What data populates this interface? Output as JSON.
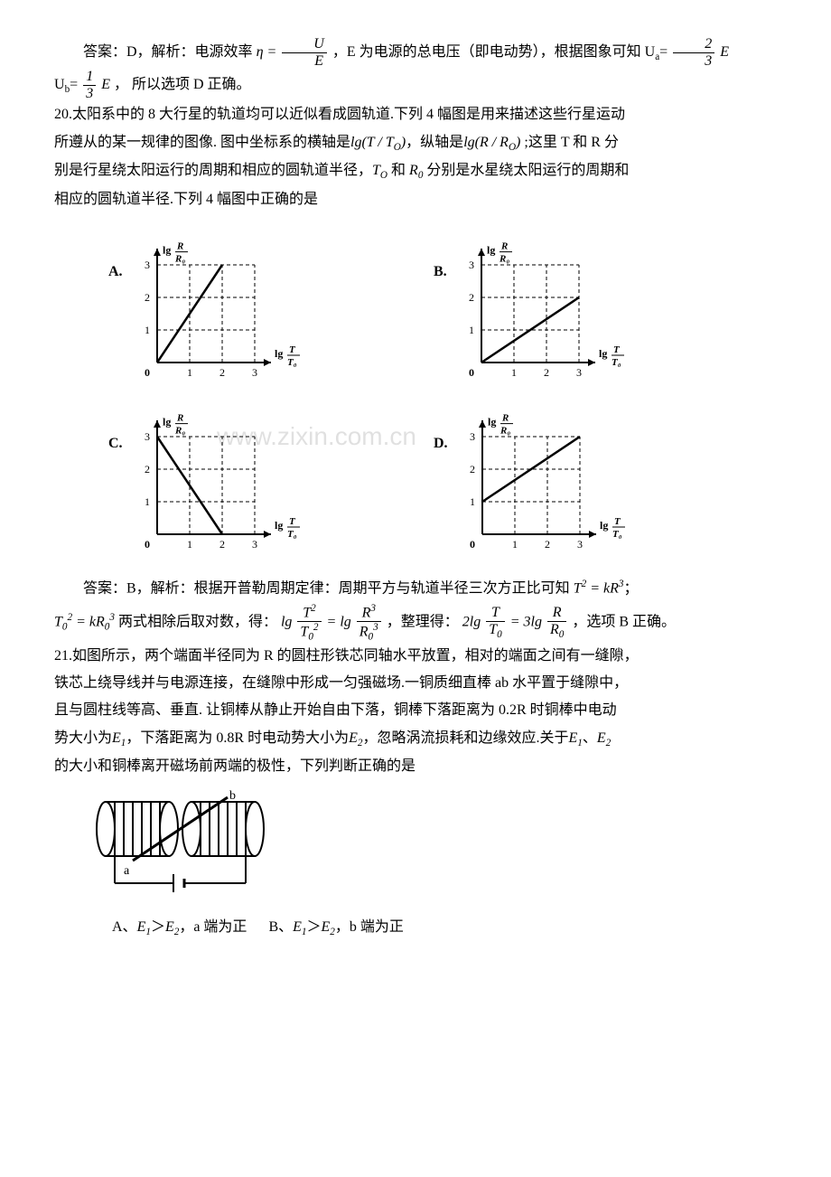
{
  "q19": {
    "answer_prefix": "答案：D，解析：电源效率",
    "eta_eq": "η =",
    "frac_U": "U",
    "frac_E": "E",
    "after_frac": "，E 为电源的总电压（即电动势），根据图象可知 U",
    "sub_a": "a",
    "equals": "=",
    "frac2_num": "2",
    "frac2_den": "3",
    "E_sym": "E",
    "line2_prefix": "U",
    "sub_b": "b",
    "line2_eq": "=",
    "frac3_num": "1",
    "frac3_den": "3",
    "line2_after": " ， 所以选项 D 正确。"
  },
  "q20": {
    "stem1": "20.太阳系中的 8 大行星的轨道均可以近似看成圆轨道.下列 4 幅图是用来描述这些行星运动",
    "stem2_a": "所遵从的某一规律的图像. 图中坐标系的横轴是",
    "lg1": "lg(T / T",
    "sub_O1": "O",
    "lg1_close": ")",
    "stem2_b": "，纵轴是",
    "lg2": "lg(R / R",
    "sub_O2": "O",
    "lg2_close": ")",
    "stem2_c": " ;这里 T 和 R 分",
    "stem3_a": "别是行星绕太阳运行的周期和相应的圆轨道半径，",
    "T_O": "T",
    "sub_O3": "O",
    "stem3_b": " 和 ",
    "R_0": "R",
    "sub_04": "0",
    "stem3_c": " 分别是水星绕太阳运行的周期和",
    "stem4": "相应的圆轨道半径.下列 4 幅图中正确的是",
    "charts": {
      "A": {
        "label": "A.",
        "line": {
          "x1": 0,
          "y1": 0,
          "x2": 2,
          "y2": 3
        }
      },
      "B": {
        "label": "B.",
        "line": {
          "x1": 0,
          "y1": 0,
          "x2": 3,
          "y2": 2
        }
      },
      "C": {
        "label": "C.",
        "line": {
          "x1": 0,
          "y1": 3,
          "x2": 2,
          "y2": 0
        }
      },
      "D": {
        "label": "D.",
        "line": {
          "x1": 0,
          "y1": 1,
          "x2": 3,
          "y2": 3
        }
      },
      "axis": {
        "xlim": [
          0,
          3.5
        ],
        "ylim": [
          0,
          3.5
        ],
        "ticks": [
          1,
          2,
          3
        ],
        "ylabel_top": "lg",
        "ylabel_frac_num": "R",
        "ylabel_frac_den": "R₀",
        "xlabel_lg": "lg",
        "xlabel_frac_num": "T",
        "xlabel_frac_den": "T₀",
        "tick_fontsize": 12,
        "grid_color": "#000000",
        "line_color": "#000000",
        "line_width": 2.5,
        "dash_pattern": "4,3",
        "background": "#ffffff"
      }
    },
    "watermark": "www.zixin.com.cn",
    "ans_prefix": "答案：B，解析：根据开普勒周期定律：周期平方与轨道半径三次方正比可知",
    "ans_eq1": "T",
    "ans_eq1_sup": "2",
    "ans_eq1_mid": " = kR",
    "ans_eq1_sup2": "3",
    "ans_eq1_end": "；",
    "ans2_a": "T",
    "ans2_sub0": "0",
    "ans2_sup2": "2",
    "ans2_mid": " = kR",
    "ans2_sub0b": "0",
    "ans2_sup3": "3",
    "ans2_text": " 两式相除后取对数，得：",
    "ans2_lg": "lg",
    "frac_T2": {
      "num_a": "T",
      "num_sup": "2",
      "den_a": "T",
      "den_sub": "0",
      "den_sup": "2"
    },
    "ans2_eq": " = lg",
    "frac_R3": {
      "num_a": "R",
      "num_sup": "3",
      "den_a": "R",
      "den_sub": "0",
      "den_sup": "3"
    },
    "ans2_text2": "，整理得：",
    "ans2_2lg": "2lg",
    "frac_T": {
      "num": "T",
      "den_a": "T",
      "den_sub": "0"
    },
    "ans2_eq2": " = 3lg",
    "frac_R": {
      "num": "R",
      "den_a": "R",
      "den_sub": "0"
    },
    "ans2_end": "，选项 B 正确。"
  },
  "q21": {
    "stem1": "21.如图所示，两个端面半径同为 R 的圆柱形铁芯同轴水平放置，相对的端面之间有一缝隙，",
    "stem2": "铁芯上绕导线并与电源连接，在缝隙中形成一匀强磁场.一铜质细直棒 ab 水平置于缝隙中，",
    "stem3": "且与圆柱线等高、垂直. 让铜棒从静止开始自由下落，铜棒下落距离为 0.2R 时铜棒中电动",
    "stem4_a": "势大小为",
    "E1": "E",
    "sub1": "1",
    "stem4_b": "，下落距离为 0.8R 时电动势大小为",
    "E2": "E",
    "sub2": "2",
    "stem4_c": "，忽略涡流损耗和边缘效应.关于",
    "E1b": "E",
    "sub1b": "1",
    "stem4_d": "、",
    "E2b": "E",
    "sub2b": "2",
    "stem5": "的大小和铜棒离开磁场前两端的极性，下列判断正确的是",
    "optA_pre": "A、",
    "optA_E1": "E",
    "optA_s1": "1",
    "optA_gt": "＞",
    "optA_E2": "E",
    "optA_s2": "2",
    "optA_txt": "，a 端为正",
    "optB_pre": "B、",
    "optB_E1": "E",
    "optB_s1": "1",
    "optB_gt": "＞",
    "optB_E2": "E",
    "optB_s2": "2",
    "optB_txt": "，b 端为正",
    "circuit": {
      "label_a": "a",
      "label_b": "b",
      "coil_color": "#000000",
      "line_width": 2,
      "background": "#ffffff"
    }
  }
}
